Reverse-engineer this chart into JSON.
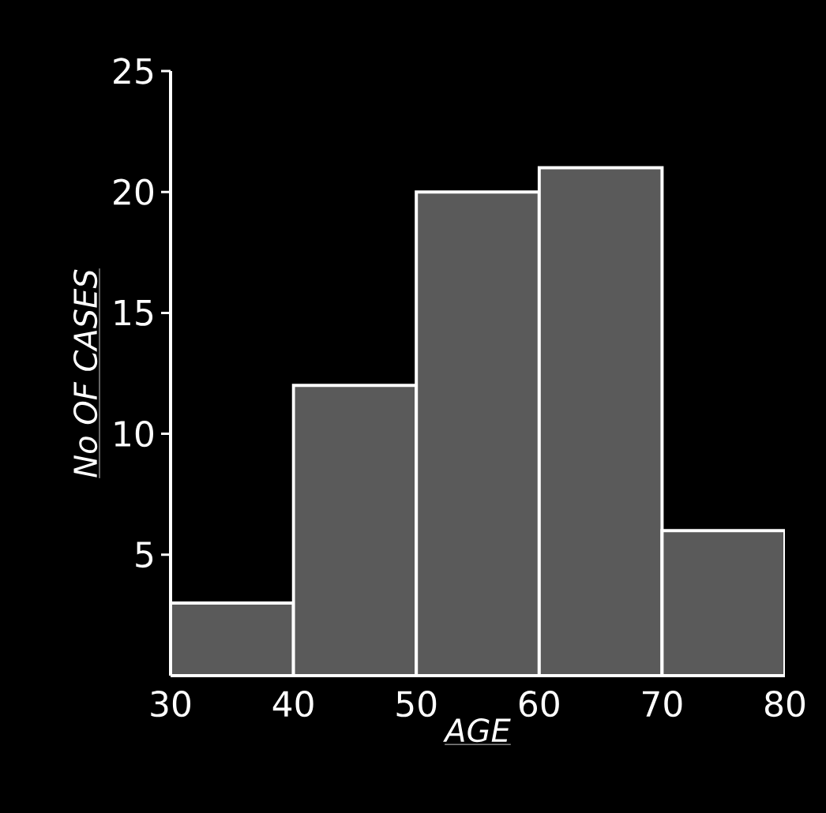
{
  "chart_data": {
    "type": "histogram",
    "xlabel": "AGE",
    "ylabel": "No OF CASES",
    "bins": [
      30,
      40,
      50,
      60,
      70,
      80
    ],
    "values": [
      3,
      12,
      20,
      21,
      6
    ],
    "color": "#5a5a5a",
    "xlim": [
      30,
      80
    ],
    "xticks": [
      30,
      40,
      50,
      60,
      70,
      80
    ],
    "ylim": [
      0,
      25
    ],
    "yticks": [
      5,
      10,
      15,
      20,
      25
    ]
  }
}
